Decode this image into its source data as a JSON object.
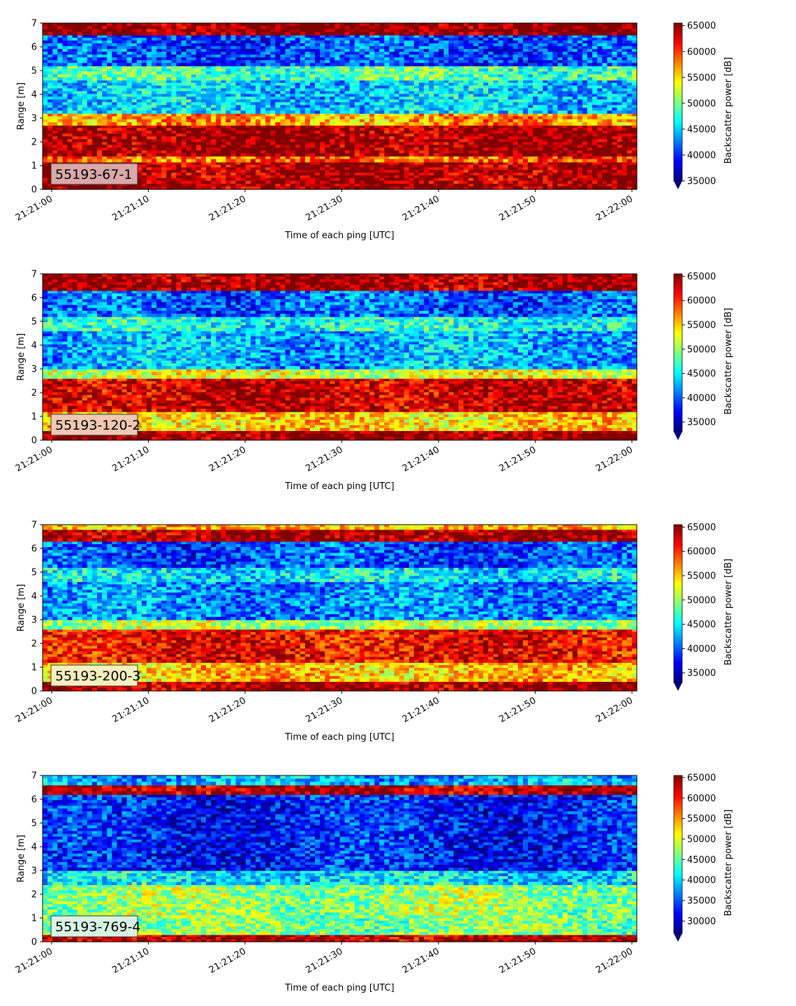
{
  "chart_data": [
    {
      "type": "heatmap",
      "title": "",
      "xlabel": "Time of each ping [UTC]",
      "ylabel": "Range [m]",
      "x_ticks": [
        "21:21:00",
        "21:21:10",
        "21:21:20",
        "21:21:30",
        "21:21:40",
        "21:21:50",
        "21:22:00"
      ],
      "y_ticks": [
        "0",
        "1",
        "2",
        "3",
        "4",
        "5",
        "6",
        "7"
      ],
      "ylim": [
        0,
        7
      ],
      "label": "55193-67-1",
      "label_color": "#d9a8a8",
      "colorbar": {
        "label": "Backscatter power [dB]",
        "ticks": [
          "35000",
          "40000",
          "45000",
          "50000",
          "55000",
          "60000",
          "65000"
        ],
        "min": 35000,
        "max": 65500,
        "colormap": "jet",
        "extend": "min"
      },
      "bands": [
        {
          "from": 0,
          "to": 0.25,
          "level": 0.98
        },
        {
          "from": 0.25,
          "to": 1.15,
          "level": 0.96
        },
        {
          "from": 1.15,
          "to": 1.4,
          "level": 0.78
        },
        {
          "from": 1.4,
          "to": 2.7,
          "level": 0.97
        },
        {
          "from": 2.7,
          "to": 3.2,
          "level": 0.72
        },
        {
          "from": 3.2,
          "to": 4.6,
          "level": 0.33
        },
        {
          "from": 4.6,
          "to": 5.2,
          "level": 0.45
        },
        {
          "from": 5.2,
          "to": 6.5,
          "level": 0.2
        },
        {
          "from": 6.5,
          "to": 7.0,
          "level": 1.0
        }
      ]
    },
    {
      "type": "heatmap",
      "title": "",
      "xlabel": "Time of each ping [UTC]",
      "ylabel": "Range [m]",
      "x_ticks": [
        "21:21:00",
        "21:21:10",
        "21:21:20",
        "21:21:30",
        "21:21:40",
        "21:21:50",
        "21:22:00"
      ],
      "y_ticks": [
        "0",
        "1",
        "2",
        "3",
        "4",
        "5",
        "6",
        "7"
      ],
      "ylim": [
        0,
        7
      ],
      "label": "55193-120-2",
      "label_color": "#f0c8b4",
      "colorbar": {
        "label": "Backscatter power [dB]",
        "ticks": [
          "35000",
          "40000",
          "45000",
          "50000",
          "55000",
          "60000",
          "65000"
        ],
        "min": 33000,
        "max": 65500,
        "colormap": "jet",
        "extend": "min"
      },
      "bands": [
        {
          "from": 0,
          "to": 0.4,
          "level": 0.98
        },
        {
          "from": 0.4,
          "to": 1.2,
          "level": 0.66
        },
        {
          "from": 1.2,
          "to": 2.6,
          "level": 0.93
        },
        {
          "from": 2.6,
          "to": 3.0,
          "level": 0.6
        },
        {
          "from": 3.0,
          "to": 4.6,
          "level": 0.3
        },
        {
          "from": 4.6,
          "to": 5.2,
          "level": 0.4
        },
        {
          "from": 5.2,
          "to": 6.3,
          "level": 0.22
        },
        {
          "from": 6.3,
          "to": 7.0,
          "level": 0.97
        }
      ]
    },
    {
      "type": "heatmap",
      "title": "",
      "xlabel": "Time of each ping [UTC]",
      "ylabel": "Range [m]",
      "x_ticks": [
        "21:21:00",
        "21:21:10",
        "21:21:20",
        "21:21:30",
        "21:21:40",
        "21:21:50",
        "21:22:00"
      ],
      "y_ticks": [
        "0",
        "1",
        "2",
        "3",
        "4",
        "5",
        "6",
        "7"
      ],
      "ylim": [
        0,
        7
      ],
      "label": "55193-200-3",
      "label_color": "#f6f0c0",
      "colorbar": {
        "label": "Backscatter power [dB]",
        "ticks": [
          "35000",
          "40000",
          "45000",
          "50000",
          "55000",
          "60000",
          "65000"
        ],
        "min": 33000,
        "max": 65500,
        "colormap": "jet",
        "extend": "min"
      },
      "bands": [
        {
          "from": 0,
          "to": 0.4,
          "level": 0.97
        },
        {
          "from": 0.4,
          "to": 1.2,
          "level": 0.68
        },
        {
          "from": 1.2,
          "to": 2.6,
          "level": 0.88
        },
        {
          "from": 2.6,
          "to": 3.0,
          "level": 0.55
        },
        {
          "from": 3.0,
          "to": 4.6,
          "level": 0.26
        },
        {
          "from": 4.6,
          "to": 5.2,
          "level": 0.36
        },
        {
          "from": 5.2,
          "to": 6.3,
          "level": 0.2
        },
        {
          "from": 6.3,
          "to": 6.8,
          "level": 0.97
        },
        {
          "from": 6.8,
          "to": 7.0,
          "level": 0.7
        }
      ]
    },
    {
      "type": "heatmap",
      "title": "",
      "xlabel": "Time of each ping [UTC]",
      "ylabel": "Range [m]",
      "x_ticks": [
        "21:21:00",
        "21:21:10",
        "21:21:20",
        "21:21:30",
        "21:21:40",
        "21:21:50",
        "21:22:00"
      ],
      "y_ticks": [
        "0",
        "1",
        "2",
        "3",
        "4",
        "5",
        "6",
        "7"
      ],
      "ylim": [
        0,
        7
      ],
      "label": "55193-769-4",
      "label_color": "#d8f4e4",
      "colorbar": {
        "label": "Backscatter power [dB]",
        "ticks": [
          "30000",
          "35000",
          "40000",
          "45000",
          "50000",
          "55000",
          "60000",
          "65000"
        ],
        "min": 27000,
        "max": 65500,
        "colormap": "jet",
        "extend": "min"
      },
      "bands": [
        {
          "from": 0,
          "to": 0.3,
          "level": 0.95
        },
        {
          "from": 0.3,
          "to": 1.0,
          "level": 0.5
        },
        {
          "from": 1.0,
          "to": 2.4,
          "level": 0.52
        },
        {
          "from": 2.4,
          "to": 3.0,
          "level": 0.35
        },
        {
          "from": 3.0,
          "to": 6.2,
          "level": 0.15
        },
        {
          "from": 6.2,
          "to": 6.6,
          "level": 0.95
        },
        {
          "from": 6.6,
          "to": 7.0,
          "level": 0.3
        }
      ]
    }
  ]
}
